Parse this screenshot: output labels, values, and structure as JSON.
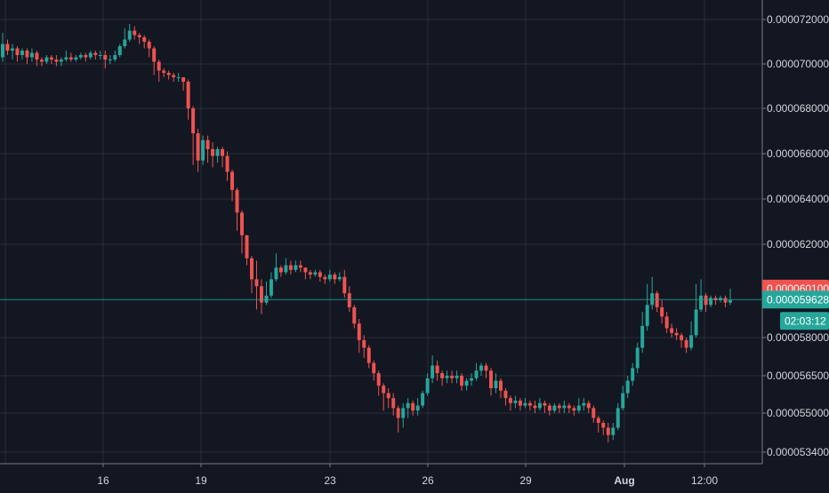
{
  "colors": {
    "background": "#131722",
    "grid": "#2a2e39",
    "axis_line": "#787b86",
    "axis_text": "#d1d4dc",
    "up": "#26a69a",
    "down": "#ef5350",
    "last_price_line": "#26a69a",
    "prev_price_badge": "#ef5350",
    "current_price_badge": "#26a69a"
  },
  "price_axis": {
    "ticks": [
      "0.000072000",
      "0.000070000",
      "0.000068000",
      "0.000066000",
      "0.000064000",
      "0.000062000",
      "0.000058000",
      "0.000056500",
      "0.000055000",
      "0.000053400"
    ]
  },
  "time_axis": {
    "ticks": [
      "16",
      "19",
      "23",
      "26",
      "29",
      "Aug",
      "12:00"
    ],
    "bold": [
      "Aug"
    ]
  },
  "price_badges": {
    "previous_close": "0.000060100",
    "current_price": "0.000059628",
    "countdown": "02:03:12"
  },
  "chart_data": {
    "type": "candlestick",
    "x_ticks": [
      "16",
      "19",
      "23",
      "26",
      "29",
      "Aug",
      "12:00"
    ],
    "y_ticks": [
      7.2e-05,
      7e-05,
      6.8e-05,
      6.6e-05,
      6.4e-05,
      6.2e-05,
      5.8e-05,
      5.65e-05,
      5.5e-05,
      5.34e-05
    ],
    "ylim": [
      5.3e-05,
      7.28e-05
    ],
    "grid": true,
    "last_price": 5.9628e-05,
    "previous_close": 6.01e-05,
    "series": [
      {
        "values": [
          [
            7.03e-05,
            7.09e-05,
            7.14e-05,
            7.01e-05
          ],
          [
            7.09e-05,
            7.06e-05,
            7.11e-05,
            7.04e-05
          ],
          [
            7.06e-05,
            7.07e-05,
            7.09e-05,
            7.02e-05
          ],
          [
            7.07e-05,
            7.04e-05,
            7.08e-05,
            7.01e-05
          ],
          [
            7.04e-05,
            7.06e-05,
            7.07e-05,
            7.02e-05
          ],
          [
            7.06e-05,
            7.03e-05,
            7.07e-05,
            7e-05
          ],
          [
            7.03e-05,
            7.05e-05,
            7.07e-05,
            7.01e-05
          ],
          [
            7.05e-05,
            7.02e-05,
            7.06e-05,
            6.99e-05
          ],
          [
            7.02e-05,
            7.01e-05,
            7.03e-05,
            6.99e-05
          ],
          [
            7.01e-05,
            7.03e-05,
            7.04e-05,
            7e-05
          ],
          [
            7.03e-05,
            7.02e-05,
            7.04e-05,
            7e-05
          ],
          [
            7.02e-05,
            7.01e-05,
            7.04e-05,
            6.99e-05
          ],
          [
            7.01e-05,
            7.02e-05,
            7.03e-05,
            6.99e-05
          ],
          [
            7.02e-05,
            7.03e-05,
            7.06e-05,
            7.01e-05
          ],
          [
            7.03e-05,
            7.02e-05,
            7.05e-05,
            7.01e-05
          ],
          [
            7.02e-05,
            7.03e-05,
            7.04e-05,
            7.01e-05
          ],
          [
            7.03e-05,
            7.04e-05,
            7.05e-05,
            7.02e-05
          ],
          [
            7.04e-05,
            7.03e-05,
            7.05e-05,
            7.01e-05
          ],
          [
            7.03e-05,
            7.05e-05,
            7.06e-05,
            7.02e-05
          ],
          [
            7.05e-05,
            7.04e-05,
            7.06e-05,
            7.02e-05
          ],
          [
            7.04e-05,
            7.04e-05,
            7.06e-05,
            7.02e-05
          ],
          [
            7.04e-05,
            7.02e-05,
            7.06e-05,
            6.98e-05
          ],
          [
            7.02e-05,
            7.02e-05,
            7.04e-05,
            7e-05
          ],
          [
            7.02e-05,
            7.04e-05,
            7.06e-05,
            7.01e-05
          ],
          [
            7.04e-05,
            7.08e-05,
            7.09e-05,
            7.03e-05
          ],
          [
            7.08e-05,
            7.11e-05,
            7.16e-05,
            7.07e-05
          ],
          [
            7.11e-05,
            7.15e-05,
            7.18e-05,
            7.1e-05
          ],
          [
            7.15e-05,
            7.13e-05,
            7.17e-05,
            7.11e-05
          ],
          [
            7.13e-05,
            7.12e-05,
            7.14e-05,
            7.09e-05
          ],
          [
            7.12e-05,
            7.1e-05,
            7.13e-05,
            7.07e-05
          ],
          [
            7.1e-05,
            7.07e-05,
            7.11e-05,
            7.03e-05
          ],
          [
            7.07e-05,
            7.01e-05,
            7.08e-05,
            6.95e-05
          ],
          [
            7.01e-05,
            6.97e-05,
            7.02e-05,
            6.92e-05
          ],
          [
            6.97e-05,
            6.96e-05,
            6.98e-05,
            6.94e-05
          ],
          [
            6.96e-05,
            6.95e-05,
            6.97e-05,
            6.93e-05
          ],
          [
            6.95e-05,
            6.94e-05,
            6.96e-05,
            6.92e-05
          ],
          [
            6.94e-05,
            6.94e-05,
            6.96e-05,
            6.92e-05
          ],
          [
            6.94e-05,
            6.92e-05,
            6.94e-05,
            6.88e-05
          ],
          [
            6.92e-05,
            6.8e-05,
            6.93e-05,
            6.75e-05
          ],
          [
            6.8e-05,
            6.69e-05,
            6.81e-05,
            6.55e-05
          ],
          [
            6.69e-05,
            6.57e-05,
            6.71e-05,
            6.52e-05
          ],
          [
            6.57e-05,
            6.66e-05,
            6.68e-05,
            6.55e-05
          ],
          [
            6.66e-05,
            6.62e-05,
            6.68e-05,
            6.56e-05
          ],
          [
            6.62e-05,
            6.59e-05,
            6.65e-05,
            6.54e-05
          ],
          [
            6.59e-05,
            6.62e-05,
            6.63e-05,
            6.56e-05
          ],
          [
            6.62e-05,
            6.59e-05,
            6.63e-05,
            6.54e-05
          ],
          [
            6.59e-05,
            6.52e-05,
            6.61e-05,
            6.48e-05
          ],
          [
            6.52e-05,
            6.44e-05,
            6.53e-05,
            6.39e-05
          ],
          [
            6.44e-05,
            6.34e-05,
            6.45e-05,
            6.26e-05
          ],
          [
            6.34e-05,
            6.24e-05,
            6.35e-05,
            6.16e-05
          ],
          [
            6.24e-05,
            6.14e-05,
            6.24e-05,
            6.11e-05
          ],
          [
            6.14e-05,
            6.05e-05,
            6.15e-05,
            5.99e-05
          ],
          [
            6.05e-05,
            6.02e-05,
            6.13e-05,
            5.92e-05
          ],
          [
            6.02e-05,
            5.95e-05,
            6.05e-05,
            5.9e-05
          ],
          [
            5.95e-05,
            5.98e-05,
            6.04e-05,
            5.94e-05
          ],
          [
            5.98e-05,
            6.05e-05,
            6.08e-05,
            5.97e-05
          ],
          [
            6.05e-05,
            6.1e-05,
            6.16e-05,
            6.04e-05
          ],
          [
            6.1e-05,
            6.08e-05,
            6.11e-05,
            6.06e-05
          ],
          [
            6.08e-05,
            6.11e-05,
            6.14e-05,
            6.07e-05
          ],
          [
            6.11e-05,
            6.09e-05,
            6.13e-05,
            6.07e-05
          ],
          [
            6.09e-05,
            6.11e-05,
            6.13e-05,
            6.08e-05
          ],
          [
            6.11e-05,
            6.1e-05,
            6.13e-05,
            6.08e-05
          ],
          [
            6.1e-05,
            6.08e-05,
            6.1e-05,
            6.05e-05
          ],
          [
            6.08e-05,
            6.07e-05,
            6.09e-05,
            6.05e-05
          ],
          [
            6.07e-05,
            6.08e-05,
            6.09e-05,
            6.06e-05
          ],
          [
            6.08e-05,
            6.06e-05,
            6.09e-05,
            6.04e-05
          ],
          [
            6.06e-05,
            6.05e-05,
            6.07e-05,
            6.03e-05
          ],
          [
            6.05e-05,
            6.07e-05,
            6.09e-05,
            6.04e-05
          ],
          [
            6.07e-05,
            6.05e-05,
            6.08e-05,
            6.03e-05
          ],
          [
            6.05e-05,
            6.06e-05,
            6.08e-05,
            6.04e-05
          ],
          [
            6.06e-05,
            5.99e-05,
            6.09e-05,
            5.97e-05
          ],
          [
            5.99e-05,
            5.93e-05,
            6.02e-05,
            5.91e-05
          ],
          [
            5.93e-05,
            5.86e-05,
            5.94e-05,
            5.84e-05
          ],
          [
            5.86e-05,
            5.79e-05,
            5.88e-05,
            5.74e-05
          ],
          [
            5.79e-05,
            5.76e-05,
            5.81e-05,
            5.72e-05
          ],
          [
            5.76e-05,
            5.7e-05,
            5.77e-05,
            5.68e-05
          ],
          [
            5.7e-05,
            5.66e-05,
            5.71e-05,
            5.63e-05
          ],
          [
            5.66e-05,
            5.61e-05,
            5.67e-05,
            5.57e-05
          ],
          [
            5.61e-05,
            5.58e-05,
            5.62e-05,
            5.51e-05
          ],
          [
            5.58e-05,
            5.56e-05,
            5.6e-05,
            5.52e-05
          ],
          [
            5.56e-05,
            5.52e-05,
            5.58e-05,
            5.49e-05
          ],
          [
            5.52e-05,
            5.48e-05,
            5.53e-05,
            5.42e-05
          ],
          [
            5.48e-05,
            5.52e-05,
            5.54e-05,
            5.44e-05
          ],
          [
            5.52e-05,
            5.54e-05,
            5.56e-05,
            5.48e-05
          ],
          [
            5.54e-05,
            5.51e-05,
            5.55e-05,
            5.49e-05
          ],
          [
            5.51e-05,
            5.53e-05,
            5.56e-05,
            5.49e-05
          ],
          [
            5.53e-05,
            5.58e-05,
            5.59e-05,
            5.52e-05
          ],
          [
            5.58e-05,
            5.64e-05,
            5.66e-05,
            5.57e-05
          ],
          [
            5.64e-05,
            5.69e-05,
            5.73e-05,
            5.62e-05
          ],
          [
            5.69e-05,
            5.66e-05,
            5.71e-05,
            5.63e-05
          ],
          [
            5.66e-05,
            5.64e-05,
            5.67e-05,
            5.61e-05
          ],
          [
            5.64e-05,
            5.65e-05,
            5.67e-05,
            5.62e-05
          ],
          [
            5.65e-05,
            5.64e-05,
            5.67e-05,
            5.62e-05
          ],
          [
            5.64e-05,
            5.65e-05,
            5.67e-05,
            5.62e-05
          ],
          [
            5.65e-05,
            5.61e-05,
            5.66e-05,
            5.59e-05
          ],
          [
            5.61e-05,
            5.63e-05,
            5.64e-05,
            5.59e-05
          ],
          [
            5.63e-05,
            5.64e-05,
            5.66e-05,
            5.61e-05
          ],
          [
            5.64e-05,
            5.67e-05,
            5.7e-05,
            5.63e-05
          ],
          [
            5.67e-05,
            5.69e-05,
            5.7e-05,
            5.65e-05
          ],
          [
            5.69e-05,
            5.67e-05,
            5.7e-05,
            5.64e-05
          ],
          [
            5.67e-05,
            5.6e-05,
            5.68e-05,
            5.57e-05
          ],
          [
            5.6e-05,
            5.63e-05,
            5.66e-05,
            5.58e-05
          ],
          [
            5.63e-05,
            5.59e-05,
            5.64e-05,
            5.56e-05
          ],
          [
            5.59e-05,
            5.56e-05,
            5.6e-05,
            5.53e-05
          ],
          [
            5.56e-05,
            5.54e-05,
            5.57e-05,
            5.51e-05
          ],
          [
            5.54e-05,
            5.55e-05,
            5.57e-05,
            5.52e-05
          ],
          [
            5.55e-05,
            5.53e-05,
            5.56e-05,
            5.51e-05
          ],
          [
            5.53e-05,
            5.54e-05,
            5.56e-05,
            5.52e-05
          ],
          [
            5.54e-05,
            5.53e-05,
            5.55e-05,
            5.51e-05
          ],
          [
            5.53e-05,
            5.52e-05,
            5.55e-05,
            5.5e-05
          ],
          [
            5.52e-05,
            5.54e-05,
            5.56e-05,
            5.51e-05
          ],
          [
            5.54e-05,
            5.53e-05,
            5.55e-05,
            5.5e-05
          ],
          [
            5.53e-05,
            5.51e-05,
            5.54e-05,
            5.49e-05
          ],
          [
            5.51e-05,
            5.53e-05,
            5.54e-05,
            5.5e-05
          ],
          [
            5.53e-05,
            5.52e-05,
            5.54e-05,
            5.5e-05
          ],
          [
            5.52e-05,
            5.53e-05,
            5.55e-05,
            5.5e-05
          ],
          [
            5.53e-05,
            5.52e-05,
            5.54e-05,
            5.5e-05
          ],
          [
            5.52e-05,
            5.51e-05,
            5.53e-05,
            5.49e-05
          ],
          [
            5.51e-05,
            5.53e-05,
            5.56e-05,
            5.5e-05
          ],
          [
            5.53e-05,
            5.54e-05,
            5.56e-05,
            5.51e-05
          ],
          [
            5.54e-05,
            5.52e-05,
            5.55e-05,
            5.5e-05
          ],
          [
            5.52e-05,
            5.48e-05,
            5.53e-05,
            5.46e-05
          ],
          [
            5.48e-05,
            5.46e-05,
            5.49e-05,
            5.42e-05
          ],
          [
            5.46e-05,
            5.44e-05,
            5.47e-05,
            5.41e-05
          ],
          [
            5.44e-05,
            5.41e-05,
            5.46e-05,
            5.38e-05
          ],
          [
            5.41e-05,
            5.44e-05,
            5.46e-05,
            5.39e-05
          ],
          [
            5.44e-05,
            5.52e-05,
            5.54e-05,
            5.43e-05
          ],
          [
            5.52e-05,
            5.58e-05,
            5.61e-05,
            5.51e-05
          ],
          [
            5.58e-05,
            5.63e-05,
            5.65e-05,
            5.56e-05
          ],
          [
            5.63e-05,
            5.68e-05,
            5.7e-05,
            5.61e-05
          ],
          [
            5.68e-05,
            5.76e-05,
            5.78e-05,
            5.66e-05
          ],
          [
            5.76e-05,
            5.85e-05,
            5.91e-05,
            5.74e-05
          ],
          [
            5.85e-05,
            5.94e-05,
            6.03e-05,
            5.83e-05
          ],
          [
            5.94e-05,
            5.99e-05,
            6.06e-05,
            5.92e-05
          ],
          [
            5.99e-05,
            5.93e-05,
            6e-05,
            5.91e-05
          ],
          [
            5.93e-05,
            5.89e-05,
            5.96e-05,
            5.86e-05
          ],
          [
            5.89e-05,
            5.84e-05,
            5.91e-05,
            5.82e-05
          ],
          [
            5.84e-05,
            5.82e-05,
            5.86e-05,
            5.8e-05
          ],
          [
            5.82e-05,
            5.81e-05,
            5.84e-05,
            5.79e-05
          ],
          [
            5.81e-05,
            5.79e-05,
            5.82e-05,
            5.76e-05
          ],
          [
            5.79e-05,
            5.76e-05,
            5.8e-05,
            5.74e-05
          ],
          [
            5.76e-05,
            5.81e-05,
            5.87e-05,
            5.75e-05
          ],
          [
            5.81e-05,
            5.92e-05,
            6.03e-05,
            5.8e-05
          ],
          [
            5.92e-05,
            5.98e-05,
            6.05e-05,
            5.91e-05
          ],
          [
            5.98e-05,
            5.94e-05,
            5.99e-05,
            5.91e-05
          ],
          [
            5.94e-05,
            5.97e-05,
            5.98e-05,
            5.93e-05
          ],
          [
            5.97e-05,
            5.96e-05,
            5.98e-05,
            5.94e-05
          ],
          [
            5.96e-05,
            5.97e-05,
            5.98e-05,
            5.95e-05
          ],
          [
            5.97e-05,
            5.95e-05,
            5.98e-05,
            5.93e-05
          ],
          [
            5.95e-05,
            5.96e-05,
            6.01e-05,
            5.94e-05
          ]
        ]
      }
    ]
  }
}
